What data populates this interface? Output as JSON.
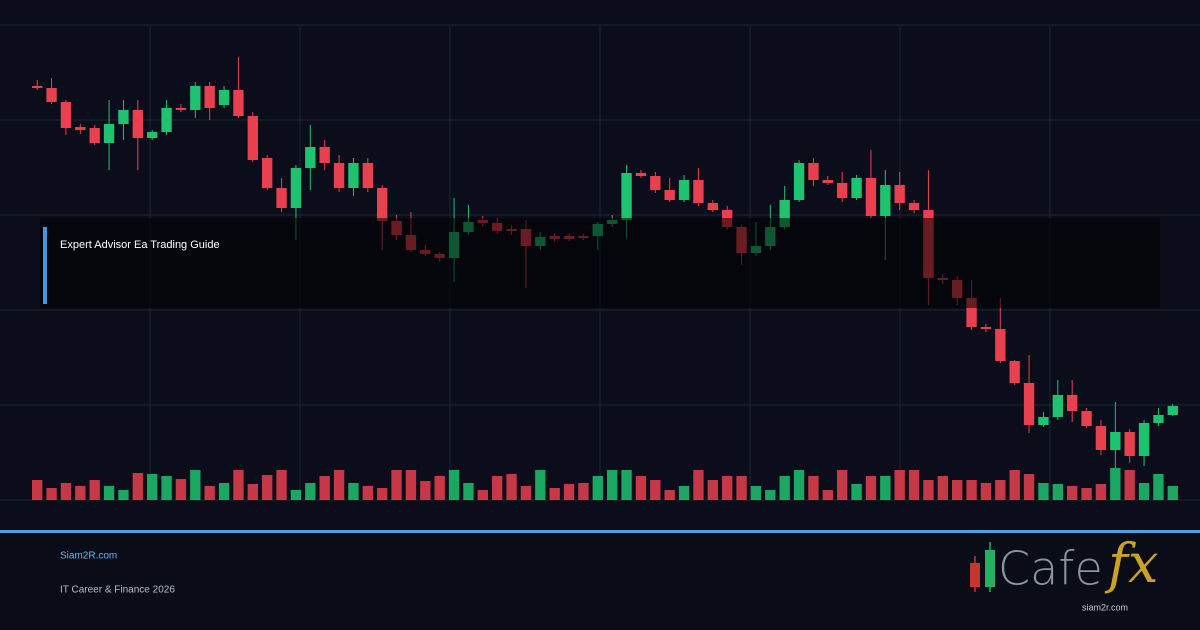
{
  "chart_data": {
    "type": "candlestick",
    "open": [
      414,
      412,
      398,
      373,
      372,
      357,
      376,
      390,
      362,
      368,
      392,
      390,
      414,
      395,
      410,
      384,
      342,
      312,
      292,
      332,
      353,
      337,
      312,
      337,
      312,
      279,
      265,
      250,
      246,
      242,
      268,
      280,
      277,
      271,
      271,
      254,
      264,
      264,
      264,
      264,
      276,
      280,
      327,
      324,
      310,
      300,
      320,
      297,
      290,
      273,
      247,
      254,
      273,
      300,
      337,
      320,
      317,
      302,
      322,
      284,
      315,
      297,
      290,
      222,
      220,
      202,
      173,
      171,
      139,
      117,
      75,
      83,
      105,
      89,
      74,
      50,
      68,
      44,
      77,
      85
    ],
    "close": [
      412,
      398,
      372,
      370,
      357,
      376,
      390,
      362,
      368,
      392,
      390,
      414,
      392,
      410,
      384,
      340,
      312,
      292,
      332,
      353,
      337,
      312,
      337,
      312,
      279,
      265,
      250,
      246,
      242,
      268,
      278,
      277,
      269,
      269,
      254,
      263,
      261,
      261,
      262,
      276,
      280,
      327,
      324,
      310,
      300,
      320,
      297,
      290,
      273,
      247,
      254,
      273,
      300,
      337,
      320,
      317,
      302,
      322,
      284,
      315,
      297,
      290,
      222,
      220,
      202,
      173,
      171,
      139,
      117,
      75,
      83,
      105,
      89,
      74,
      50,
      68,
      44,
      77,
      85,
      94
    ],
    "high": [
      420,
      422,
      400,
      376,
      375,
      400,
      400,
      400,
      370,
      400,
      396,
      418,
      418,
      414,
      443,
      388,
      345,
      322,
      335,
      375,
      360,
      345,
      342,
      342,
      315,
      285,
      288,
      255,
      248,
      302,
      295,
      284,
      282,
      275,
      280,
      268,
      267,
      267,
      266,
      278,
      285,
      335,
      330,
      328,
      322,
      325,
      332,
      300,
      294,
      275,
      278,
      295,
      314,
      340,
      342,
      324,
      328,
      325,
      350,
      330,
      328,
      300,
      330,
      226,
      224,
      220,
      176,
      202,
      140,
      145,
      88,
      120,
      120,
      92,
      80,
      98,
      71,
      80,
      92,
      96
    ],
    "low": [
      410,
      396,
      365,
      366,
      355,
      330,
      360,
      330,
      360,
      365,
      388,
      382,
      380,
      392,
      382,
      338,
      310,
      288,
      260,
      310,
      330,
      308,
      304,
      308,
      250,
      260,
      248,
      244,
      238,
      218,
      265,
      273,
      266,
      265,
      212,
      250,
      258,
      259,
      260,
      250,
      273,
      262,
      322,
      307,
      298,
      298,
      294,
      288,
      270,
      235,
      244,
      250,
      271,
      298,
      314,
      315,
      298,
      300,
      282,
      240,
      290,
      287,
      195,
      216,
      195,
      170,
      168,
      137,
      115,
      67,
      73,
      80,
      78,
      72,
      45,
      32,
      37,
      34,
      74,
      84
    ],
    "volume": [
      20,
      12,
      17,
      14,
      20,
      14,
      10,
      27,
      26,
      24,
      21,
      30,
      14,
      17,
      30,
      16,
      25,
      30,
      10,
      17,
      24,
      30,
      17,
      14,
      12,
      30,
      30,
      19,
      24,
      30,
      17,
      10,
      24,
      26,
      14,
      30,
      12,
      16,
      17,
      24,
      30,
      30,
      24,
      20,
      10,
      14,
      30,
      20,
      24,
      24,
      14,
      10,
      24,
      30,
      24,
      10,
      30,
      16,
      24,
      24,
      30,
      30,
      20,
      24,
      20,
      20,
      17,
      20,
      30,
      26,
      17,
      16,
      14,
      12,
      16,
      32,
      30,
      17,
      26,
      14
    ],
    "up_color": "#1fc26f",
    "down_color": "#e8404f",
    "ylim": [
      0,
      475
    ],
    "yticks": [
      0,
      95,
      190,
      285,
      380,
      475
    ],
    "grid": true
  },
  "banner": {
    "title": "Expert Advisor Ea Trading Guide",
    "site": "Siam2R.com",
    "footer": "IT Career & Finance 2026",
    "logo": {
      "word": "Cafe",
      "accent": "fx",
      "url": "siam2r.com"
    }
  }
}
